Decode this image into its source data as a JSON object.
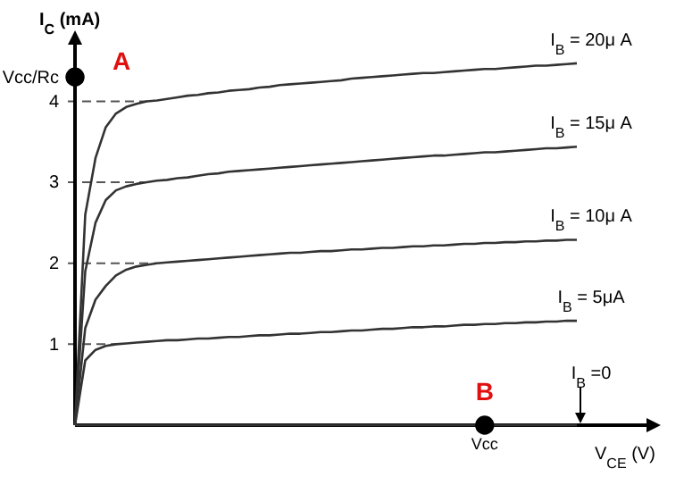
{
  "chart_data": {
    "type": "line",
    "xlabel": "V$_{CE}$ (V)",
    "ylabel": "I$_{C}$ (mA)",
    "categories": [
      null,
      null,
      null,
      null,
      null,
      null,
      null,
      null,
      null,
      null,
      null,
      null,
      null,
      null,
      null,
      null,
      null,
      null,
      null,
      null,
      null,
      null,
      null,
      null,
      null,
      null,
      null,
      null,
      null,
      null,
      null,
      null,
      null,
      null,
      null,
      null,
      null,
      null,
      null,
      null,
      "Vcc",
      null,
      null,
      null,
      null,
      null,
      null,
      null,
      null,
      null
    ],
    "ylim": [
      0,
      4.7
    ],
    "yticks": [
      1,
      2,
      3,
      4,
      {
        "value": 4.3,
        "label": "Vcc/Rc"
      }
    ],
    "line_style": "solid",
    "marker": "none",
    "series": [
      {
        "name": "I$_{B}$ = 20μ A",
        "color": "#333333",
        "values": [
          0,
          2.6,
          3.3,
          3.68,
          3.85,
          3.93,
          3.97,
          4.0,
          4.01,
          4.03,
          4.05,
          4.07,
          4.08,
          4.1,
          4.11,
          4.13,
          4.14,
          4.15,
          4.17,
          4.18,
          4.2,
          4.21,
          4.22,
          4.23,
          4.24,
          4.25,
          4.26,
          4.28,
          4.29,
          4.3,
          4.31,
          4.32,
          4.33,
          4.34,
          4.35,
          4.35,
          4.36,
          4.37,
          4.38,
          4.39,
          4.4,
          4.4,
          4.41,
          4.42,
          4.43,
          4.44,
          4.44,
          4.45,
          4.46,
          4.47
        ]
      },
      {
        "name": "I$_{B}$ = 15μ A",
        "color": "#333333",
        "values": [
          0,
          1.9,
          2.5,
          2.78,
          2.9,
          2.95,
          2.98,
          3.0,
          3.02,
          3.03,
          3.05,
          3.06,
          3.08,
          3.1,
          3.11,
          3.13,
          3.14,
          3.15,
          3.16,
          3.17,
          3.18,
          3.19,
          3.2,
          3.21,
          3.22,
          3.23,
          3.24,
          3.25,
          3.26,
          3.27,
          3.28,
          3.29,
          3.3,
          3.31,
          3.32,
          3.33,
          3.33,
          3.34,
          3.35,
          3.36,
          3.37,
          3.37,
          3.38,
          3.39,
          3.4,
          3.41,
          3.42,
          3.42,
          3.43,
          3.44
        ]
      },
      {
        "name": "I$_{B}$ = 10μ A",
        "color": "#333333",
        "values": [
          0,
          1.2,
          1.55,
          1.72,
          1.85,
          1.92,
          1.96,
          1.98,
          2.0,
          2.01,
          2.02,
          2.03,
          2.04,
          2.05,
          2.06,
          2.07,
          2.08,
          2.09,
          2.1,
          2.11,
          2.12,
          2.13,
          2.13,
          2.14,
          2.15,
          2.15,
          2.16,
          2.17,
          2.17,
          2.18,
          2.19,
          2.19,
          2.2,
          2.21,
          2.21,
          2.22,
          2.22,
          2.23,
          2.24,
          2.24,
          2.25,
          2.25,
          2.26,
          2.26,
          2.27,
          2.27,
          2.28,
          2.28,
          2.29,
          2.29
        ]
      },
      {
        "name": "I$_{B}$ = 5μA",
        "color": "#333333",
        "values": [
          0,
          0.8,
          0.93,
          0.98,
          1.0,
          1.01,
          1.02,
          1.03,
          1.04,
          1.05,
          1.05,
          1.06,
          1.07,
          1.07,
          1.08,
          1.09,
          1.09,
          1.1,
          1.11,
          1.11,
          1.12,
          1.13,
          1.13,
          1.14,
          1.15,
          1.15,
          1.16,
          1.17,
          1.17,
          1.18,
          1.19,
          1.19,
          1.2,
          1.21,
          1.21,
          1.22,
          1.22,
          1.23,
          1.24,
          1.24,
          1.25,
          1.25,
          1.26,
          1.26,
          1.27,
          1.27,
          1.28,
          1.28,
          1.29,
          1.29
        ]
      },
      {
        "name": "I$_{B}$ =0",
        "color": "#333333",
        "values": [
          0,
          0,
          0,
          0,
          0,
          0,
          0,
          0,
          0,
          0,
          0,
          0,
          0,
          0,
          0,
          0,
          0,
          0,
          0,
          0,
          0,
          0,
          0,
          0,
          0,
          0,
          0,
          0,
          0,
          0,
          0,
          0,
          0,
          0,
          0,
          0,
          0,
          0,
          0,
          0,
          0,
          0,
          0,
          0,
          0,
          0,
          0,
          0,
          0,
          0
        ]
      },
      {
        "type": "scatter",
        "marker": "circle",
        "color": "#000000",
        "values": [
          4.3,
          null,
          null,
          null,
          null,
          null,
          null,
          null,
          null,
          null,
          null,
          null,
          null,
          null,
          null,
          null,
          null,
          null,
          null,
          null,
          null,
          null,
          null,
          null,
          null,
          null,
          null,
          null,
          null,
          null,
          null,
          null,
          null,
          null,
          null,
          null,
          null,
          null,
          null,
          null,
          0,
          null,
          null,
          null,
          null,
          null,
          null,
          null,
          null,
          null
        ],
        "value_labels": [
          "A",
          null,
          null,
          null,
          null,
          null,
          null,
          null,
          null,
          null,
          null,
          null,
          null,
          null,
          null,
          null,
          null,
          null,
          null,
          null,
          null,
          null,
          null,
          null,
          null,
          null,
          null,
          null,
          null,
          null,
          null,
          null,
          null,
          null,
          null,
          null,
          null,
          null,
          null,
          null,
          "B",
          null,
          null,
          null,
          null,
          null,
          null,
          null,
          null,
          null
        ]
      }
    ]
  }
}
